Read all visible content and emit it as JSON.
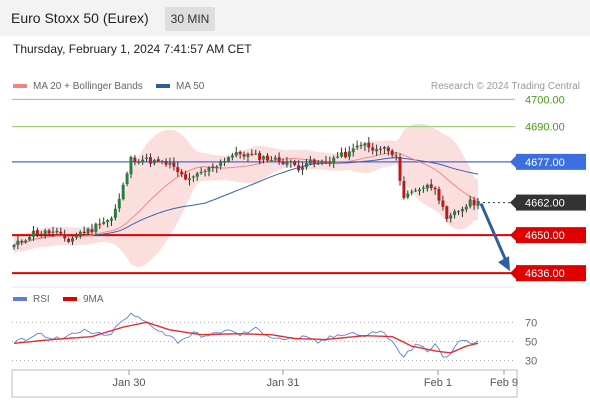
{
  "header": {
    "title": "Euro Stoxx 50 (Eurex)",
    "timeframe": "30 MIN"
  },
  "datetime": "Thursday, February 1, 2024 7:41:57 AM CET",
  "copyright": "Research © 2024 Trading Central",
  "legend_main": [
    {
      "label": "MA 20 + Bollinger Bands",
      "color": "#f4837d"
    },
    {
      "label": "MA 50",
      "color": "#2e5e9e"
    }
  ],
  "legend_rsi": [
    {
      "label": "RSI",
      "color": "#5b7fd6"
    },
    {
      "label": "9MA",
      "color": "#e00000"
    }
  ],
  "colors": {
    "up": "#2f7a3f",
    "down": "#c01818",
    "candle_outline": "#333333",
    "bands": "#fbdcdc",
    "ma20": "#f08a88",
    "ma50": "#3c62a8",
    "green_level": "#8ccf6e",
    "green_text": "#4a9a1a",
    "blue_level": "#3b6fe0",
    "red_level": "#e00000",
    "pivot": "#333333",
    "arrow": "#2f5fa0",
    "rsi": "#5b7fd6",
    "rsi_ma": "#e03030"
  },
  "chart_data": [
    {
      "type": "candlestick",
      "title": "Euro Stoxx 50 (Eurex)",
      "ylim": [
        4632,
        4702
      ],
      "x_ticks": [
        "Jan 30",
        "Jan 31",
        "Feb 1",
        "Feb 9"
      ],
      "levels": [
        {
          "value": 4700,
          "label": "4700.00",
          "style": "green-line"
        },
        {
          "value": 4690,
          "label": "4690.00",
          "style": "green-line"
        },
        {
          "value": 4677,
          "label": "4677.00",
          "style": "blue-box"
        },
        {
          "value": 4662,
          "label": "4662.00",
          "style": "dark-box"
        },
        {
          "value": 4650,
          "label": "4650.00",
          "style": "red-box"
        },
        {
          "value": 4636,
          "label": "4636.00",
          "style": "red-box"
        }
      ],
      "forecast_arrow": {
        "from": 4662,
        "to": 4636
      },
      "anchors": [
        {
          "i": 0,
          "v": 4646
        },
        {
          "i": 5,
          "v": 4651
        },
        {
          "i": 10,
          "v": 4651
        },
        {
          "i": 14,
          "v": 4648
        },
        {
          "i": 17,
          "v": 4651
        },
        {
          "i": 20,
          "v": 4652
        },
        {
          "i": 22,
          "v": 4655
        },
        {
          "i": 25,
          "v": 4656
        },
        {
          "i": 27,
          "v": 4663
        },
        {
          "i": 30,
          "v": 4678
        },
        {
          "i": 33,
          "v": 4678
        },
        {
          "i": 36,
          "v": 4677
        },
        {
          "i": 40,
          "v": 4676
        },
        {
          "i": 42,
          "v": 4673
        },
        {
          "i": 45,
          "v": 4670
        },
        {
          "i": 48,
          "v": 4673
        },
        {
          "i": 52,
          "v": 4676
        },
        {
          "i": 55,
          "v": 4679
        },
        {
          "i": 58,
          "v": 4680
        },
        {
          "i": 62,
          "v": 4679
        },
        {
          "i": 66,
          "v": 4678
        },
        {
          "i": 70,
          "v": 4677
        },
        {
          "i": 73,
          "v": 4675
        },
        {
          "i": 75,
          "v": 4677
        },
        {
          "i": 78,
          "v": 4676
        },
        {
          "i": 80,
          "v": 4677
        },
        {
          "i": 83,
          "v": 4679
        },
        {
          "i": 86,
          "v": 4680
        },
        {
          "i": 89,
          "v": 4684
        },
        {
          "i": 92,
          "v": 4681
        },
        {
          "i": 95,
          "v": 4682
        },
        {
          "i": 98,
          "v": 4678
        },
        {
          "i": 100,
          "v": 4664
        },
        {
          "i": 103,
          "v": 4667
        },
        {
          "i": 106,
          "v": 4668
        },
        {
          "i": 108,
          "v": 4668
        },
        {
          "i": 111,
          "v": 4655
        },
        {
          "i": 113,
          "v": 4658
        },
        {
          "i": 115,
          "v": 4660
        },
        {
          "i": 117,
          "v": 4662
        },
        {
          "i": 119,
          "v": 4662
        }
      ],
      "n_candles": 120
    },
    {
      "type": "line",
      "title": "RSI",
      "ylim": [
        20,
        85
      ],
      "y_ticks": [
        70,
        50,
        30
      ],
      "series": [
        {
          "name": "RSI",
          "anchors": [
            [
              0,
              48
            ],
            [
              6,
              58
            ],
            [
              12,
              52
            ],
            [
              18,
              61
            ],
            [
              24,
              55
            ],
            [
              28,
              72
            ],
            [
              30,
              78
            ],
            [
              34,
              70
            ],
            [
              38,
              60
            ],
            [
              42,
              50
            ],
            [
              46,
              58
            ],
            [
              50,
              55
            ],
            [
              54,
              62
            ],
            [
              58,
              57
            ],
            [
              62,
              63
            ],
            [
              66,
              55
            ],
            [
              70,
              52
            ],
            [
              74,
              54
            ],
            [
              78,
              49
            ],
            [
              82,
              55
            ],
            [
              86,
              60
            ],
            [
              90,
              55
            ],
            [
              94,
              62
            ],
            [
              97,
              49
            ],
            [
              100,
              34
            ],
            [
              103,
              46
            ],
            [
              106,
              41
            ],
            [
              108,
              48
            ],
            [
              110,
              32
            ],
            [
              112,
              36
            ],
            [
              114,
              51
            ],
            [
              116,
              49
            ],
            [
              119,
              48
            ]
          ]
        },
        {
          "name": "9MA",
          "anchors": [
            [
              0,
              48
            ],
            [
              10,
              52
            ],
            [
              20,
              55
            ],
            [
              28,
              65
            ],
            [
              34,
              70
            ],
            [
              40,
              62
            ],
            [
              48,
              57
            ],
            [
              58,
              58
            ],
            [
              66,
              57
            ],
            [
              72,
              53
            ],
            [
              80,
              52
            ],
            [
              90,
              56
            ],
            [
              97,
              55
            ],
            [
              102,
              45
            ],
            [
              108,
              40
            ],
            [
              112,
              38
            ],
            [
              116,
              45
            ],
            [
              119,
              48
            ]
          ]
        }
      ]
    }
  ]
}
